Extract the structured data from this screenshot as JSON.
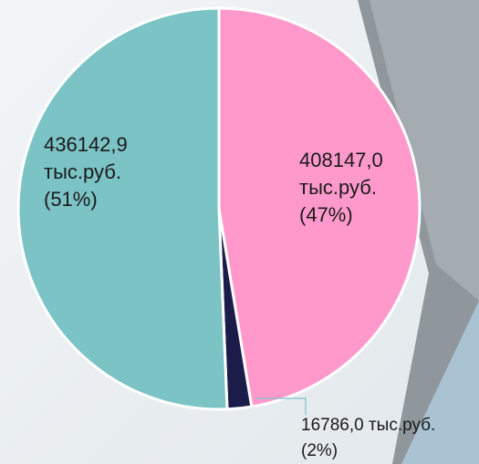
{
  "chart_data": {
    "type": "pie",
    "values": [
      408147.0,
      16786.0,
      436142.9
    ],
    "colors": [
      "#ff99cc",
      "#1c1c4a",
      "#7cc3c6"
    ],
    "value_labels": [
      [
        "408147,0",
        "тыс.руб.",
        "(47%)"
      ],
      [
        "16786,0 тыс.руб.",
        "(2%)"
      ],
      [
        "436142,9",
        "тыс.руб.",
        "(51%)"
      ]
    ]
  }
}
